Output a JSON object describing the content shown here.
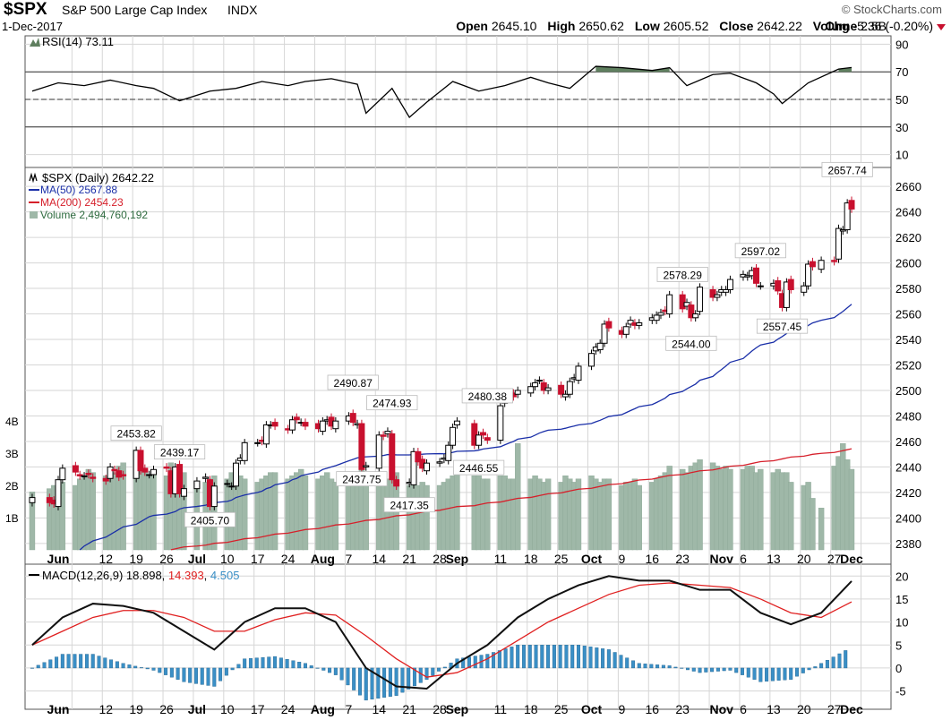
{
  "header": {
    "symbol": "$SPX",
    "name": "S&P 500 Large Cap Index",
    "exchange": "INDX",
    "source": "StockCharts.com",
    "date": "1-Dec-2017",
    "open_label": "Open",
    "open": "2645.10",
    "high_label": "High",
    "high": "2650.62",
    "low_label": "Low",
    "low": "2605.52",
    "close_label": "Close",
    "close": "2642.22",
    "volume_label": "Volume",
    "volume": "2.5B",
    "chg_label": "Chg",
    "chg": "-5.36 (-0.20%)"
  },
  "colors": {
    "up": "#000000",
    "down": "#c8102e",
    "ma50": "#1a2fa8",
    "ma200": "#d6202b",
    "volume": "#9fb8a8",
    "rsi_fill": "#5f7f5f",
    "macd_hist": "#3a8fc6",
    "signal": "#e02020",
    "grid": "#d6d6d6"
  },
  "chart_data": [
    {
      "type": "line",
      "title": "RSI(14) 73.11",
      "ylim": [
        0,
        100
      ],
      "yticks": [
        "90",
        "70",
        "50",
        "30",
        "10"
      ],
      "reference_lines": [
        70,
        50,
        30
      ],
      "x": [
        "2017-05-26",
        "2017-06-01",
        "2017-06-07",
        "2017-06-13",
        "2017-06-19",
        "2017-06-23",
        "2017-06-29",
        "2017-07-06",
        "2017-07-12",
        "2017-07-18",
        "2017-07-24",
        "2017-07-28",
        "2017-08-03",
        "2017-08-09",
        "2017-08-11",
        "2017-08-17",
        "2017-08-21",
        "2017-08-25",
        "2017-08-31",
        "2017-09-06",
        "2017-09-12",
        "2017-09-18",
        "2017-09-22",
        "2017-09-27",
        "2017-10-03",
        "2017-10-09",
        "2017-10-16",
        "2017-10-20",
        "2017-10-24",
        "2017-10-30",
        "2017-11-03",
        "2017-11-09",
        "2017-11-13",
        "2017-11-15",
        "2017-11-21",
        "2017-11-28",
        "2017-12-01"
      ],
      "series": [
        {
          "values": [
            56,
            62,
            60,
            64,
            60,
            58,
            49,
            56,
            58,
            63,
            60,
            63,
            65,
            61,
            40,
            58,
            37,
            48,
            63,
            56,
            60,
            66,
            62,
            58,
            74,
            73,
            71,
            73,
            60,
            68,
            69,
            62,
            54,
            47,
            62,
            72,
            73.11
          ]
        }
      ]
    },
    {
      "type": "candlestick",
      "title": "$SPX (Daily) 2642.22",
      "ylim": [
        2375,
        2665
      ],
      "yticks": [
        "2660",
        "2640",
        "2620",
        "2600",
        "2580",
        "2560",
        "2540",
        "2520",
        "2500",
        "2480",
        "2460",
        "2440",
        "2420",
        "2400",
        "2380"
      ],
      "volume_ticks": [
        "4B",
        "3B",
        "2B",
        "1B"
      ],
      "xticks": [
        "Jun",
        "12",
        "19",
        "26",
        "Jul",
        "10",
        "17",
        "24",
        "Aug",
        "7",
        "14",
        "21",
        "28",
        "Sep",
        "11",
        "18",
        "25",
        "Oct",
        "9",
        "16",
        "23",
        "Nov",
        "6",
        "13",
        "20",
        "27",
        "Dec"
      ],
      "legend": [
        "MA(50) 2567.88",
        "MA(200) 2454.23",
        "Volume 2,494,760,192"
      ],
      "annotations": [
        "2657.74",
        "2597.02",
        "2578.29",
        "2544.00",
        "2557.45",
        "2490.87",
        "2474.93",
        "2480.38",
        "2453.82",
        "2439.17",
        "2437.75",
        "2446.55",
        "2417.35",
        "2405.70"
      ],
      "x": [
        "2017-05-26",
        "2017-05-30",
        "2017-05-31",
        "2017-06-01",
        "2017-06-02",
        "2017-06-05",
        "2017-06-06",
        "2017-06-07",
        "2017-06-08",
        "2017-06-09",
        "2017-06-12",
        "2017-06-13",
        "2017-06-14",
        "2017-06-15",
        "2017-06-16",
        "2017-06-19",
        "2017-06-20",
        "2017-06-21",
        "2017-06-22",
        "2017-06-23",
        "2017-06-26",
        "2017-06-27",
        "2017-06-28",
        "2017-06-29",
        "2017-06-30",
        "2017-07-03",
        "2017-07-05",
        "2017-07-06",
        "2017-07-07",
        "2017-07-10",
        "2017-07-11",
        "2017-07-12",
        "2017-07-13",
        "2017-07-14",
        "2017-07-17",
        "2017-07-18",
        "2017-07-19",
        "2017-07-20",
        "2017-07-21",
        "2017-07-24",
        "2017-07-25",
        "2017-07-26",
        "2017-07-27",
        "2017-07-28",
        "2017-07-31",
        "2017-08-01",
        "2017-08-02",
        "2017-08-03",
        "2017-08-04",
        "2017-08-07",
        "2017-08-08",
        "2017-08-09",
        "2017-08-10",
        "2017-08-11",
        "2017-08-14",
        "2017-08-15",
        "2017-08-16",
        "2017-08-17",
        "2017-08-18",
        "2017-08-21",
        "2017-08-22",
        "2017-08-23",
        "2017-08-24",
        "2017-08-25",
        "2017-08-28",
        "2017-08-29",
        "2017-08-30",
        "2017-08-31",
        "2017-09-01",
        "2017-09-05",
        "2017-09-06",
        "2017-09-07",
        "2017-09-08",
        "2017-09-11",
        "2017-09-12",
        "2017-09-13",
        "2017-09-14",
        "2017-09-15",
        "2017-09-18",
        "2017-09-19",
        "2017-09-20",
        "2017-09-21",
        "2017-09-22",
        "2017-09-25",
        "2017-09-26",
        "2017-09-27",
        "2017-09-28",
        "2017-09-29",
        "2017-10-02",
        "2017-10-03",
        "2017-10-04",
        "2017-10-05",
        "2017-10-06",
        "2017-10-09",
        "2017-10-10",
        "2017-10-11",
        "2017-10-12",
        "2017-10-13",
        "2017-10-16",
        "2017-10-17",
        "2017-10-18",
        "2017-10-19",
        "2017-10-20",
        "2017-10-23",
        "2017-10-24",
        "2017-10-25",
        "2017-10-26",
        "2017-10-27",
        "2017-10-30",
        "2017-10-31",
        "2017-11-01",
        "2017-11-02",
        "2017-11-03",
        "2017-11-06",
        "2017-11-07",
        "2017-11-08",
        "2017-11-09",
        "2017-11-10",
        "2017-11-13",
        "2017-11-14",
        "2017-11-15",
        "2017-11-16",
        "2017-11-17",
        "2017-11-20",
        "2017-11-21",
        "2017-11-22",
        "2017-11-24",
        "2017-11-27",
        "2017-11-28",
        "2017-11-29",
        "2017-11-30",
        "2017-12-01"
      ],
      "close": [
        2416,
        2412,
        2411,
        2430,
        2439,
        2436,
        2433,
        2433,
        2434,
        2431,
        2429,
        2440,
        2437,
        2432,
        2433,
        2453,
        2437,
        2436,
        2434,
        2438,
        2439,
        2419,
        2440,
        2419,
        2423,
        2429,
        2432,
        2409,
        2425,
        2427,
        2425,
        2443,
        2447,
        2459,
        2459,
        2460,
        2473,
        2473,
        2472,
        2469,
        2477,
        2477,
        2475,
        2472,
        2470,
        2476,
        2477,
        2472,
        2476,
        2480,
        2475,
        2474,
        2438,
        2441,
        2465,
        2464,
        2468,
        2430,
        2425,
        2428,
        2452,
        2444,
        2439,
        2443,
        2444,
        2447,
        2457,
        2471,
        2476,
        2457,
        2465,
        2465,
        2461,
        2488,
        2496,
        2498,
        2495,
        2500,
        2503,
        2506,
        2508,
        2500,
        2502,
        2497,
        2497,
        2507,
        2510,
        2519,
        2529,
        2534,
        2537,
        2552,
        2549,
        2544,
        2550,
        2555,
        2551,
        2553,
        2557,
        2559,
        2561,
        2562,
        2575,
        2564,
        2569,
        2557,
        2560,
        2581,
        2573,
        2575,
        2579,
        2579,
        2587,
        2591,
        2590,
        2594,
        2584,
        2582,
        2584,
        2578,
        2565,
        2585,
        2579,
        2582,
        2599,
        2597,
        2602,
        2601,
        2627,
        2626,
        2647,
        2642.22
      ]
    },
    {
      "type": "line",
      "title": "MACD(12,26,9)",
      "legend": [
        "MACD(12,26,9) 18.898",
        "14.393",
        "4.505"
      ],
      "ylim": [
        -8,
        22
      ],
      "yticks": [
        "20",
        "15",
        "10",
        "5",
        "0",
        "-5"
      ],
      "x": [
        "2017-05-26",
        "2017-06-02",
        "2017-06-09",
        "2017-06-16",
        "2017-06-23",
        "2017-06-30",
        "2017-07-07",
        "2017-07-14",
        "2017-07-21",
        "2017-07-28",
        "2017-08-04",
        "2017-08-11",
        "2017-08-18",
        "2017-08-25",
        "2017-09-01",
        "2017-09-08",
        "2017-09-15",
        "2017-09-22",
        "2017-09-29",
        "2017-10-06",
        "2017-10-13",
        "2017-10-20",
        "2017-10-27",
        "2017-11-03",
        "2017-11-10",
        "2017-11-17",
        "2017-11-24",
        "2017-12-01"
      ],
      "series": [
        {
          "name": "MACD(12,26,9)",
          "values": [
            5,
            11,
            14,
            13.5,
            12,
            8,
            4,
            10,
            13,
            13,
            10,
            0,
            -4,
            -4.5,
            1,
            5,
            11,
            15,
            18,
            20,
            19,
            19,
            17,
            17,
            12,
            9.5,
            12,
            18.898
          ]
        },
        {
          "name": "",
          "values": [
            5,
            8,
            11,
            12.5,
            12.5,
            11,
            8,
            8,
            10.5,
            12,
            11.5,
            7,
            2,
            -2,
            -1,
            2,
            6,
            10,
            13,
            16,
            18,
            18.5,
            18,
            17.5,
            15,
            12,
            11,
            14.393
          ]
        },
        {
          "name": "",
          "values": [
            0,
            3,
            3,
            1,
            -0.5,
            -3,
            -4,
            2,
            2.5,
            1,
            -1.5,
            -7,
            -6,
            -2.5,
            2,
            3,
            5,
            5,
            5,
            4,
            1,
            0.5,
            -1,
            -0.5,
            -3,
            -2.5,
            1,
            4.505
          ]
        }
      ]
    }
  ]
}
